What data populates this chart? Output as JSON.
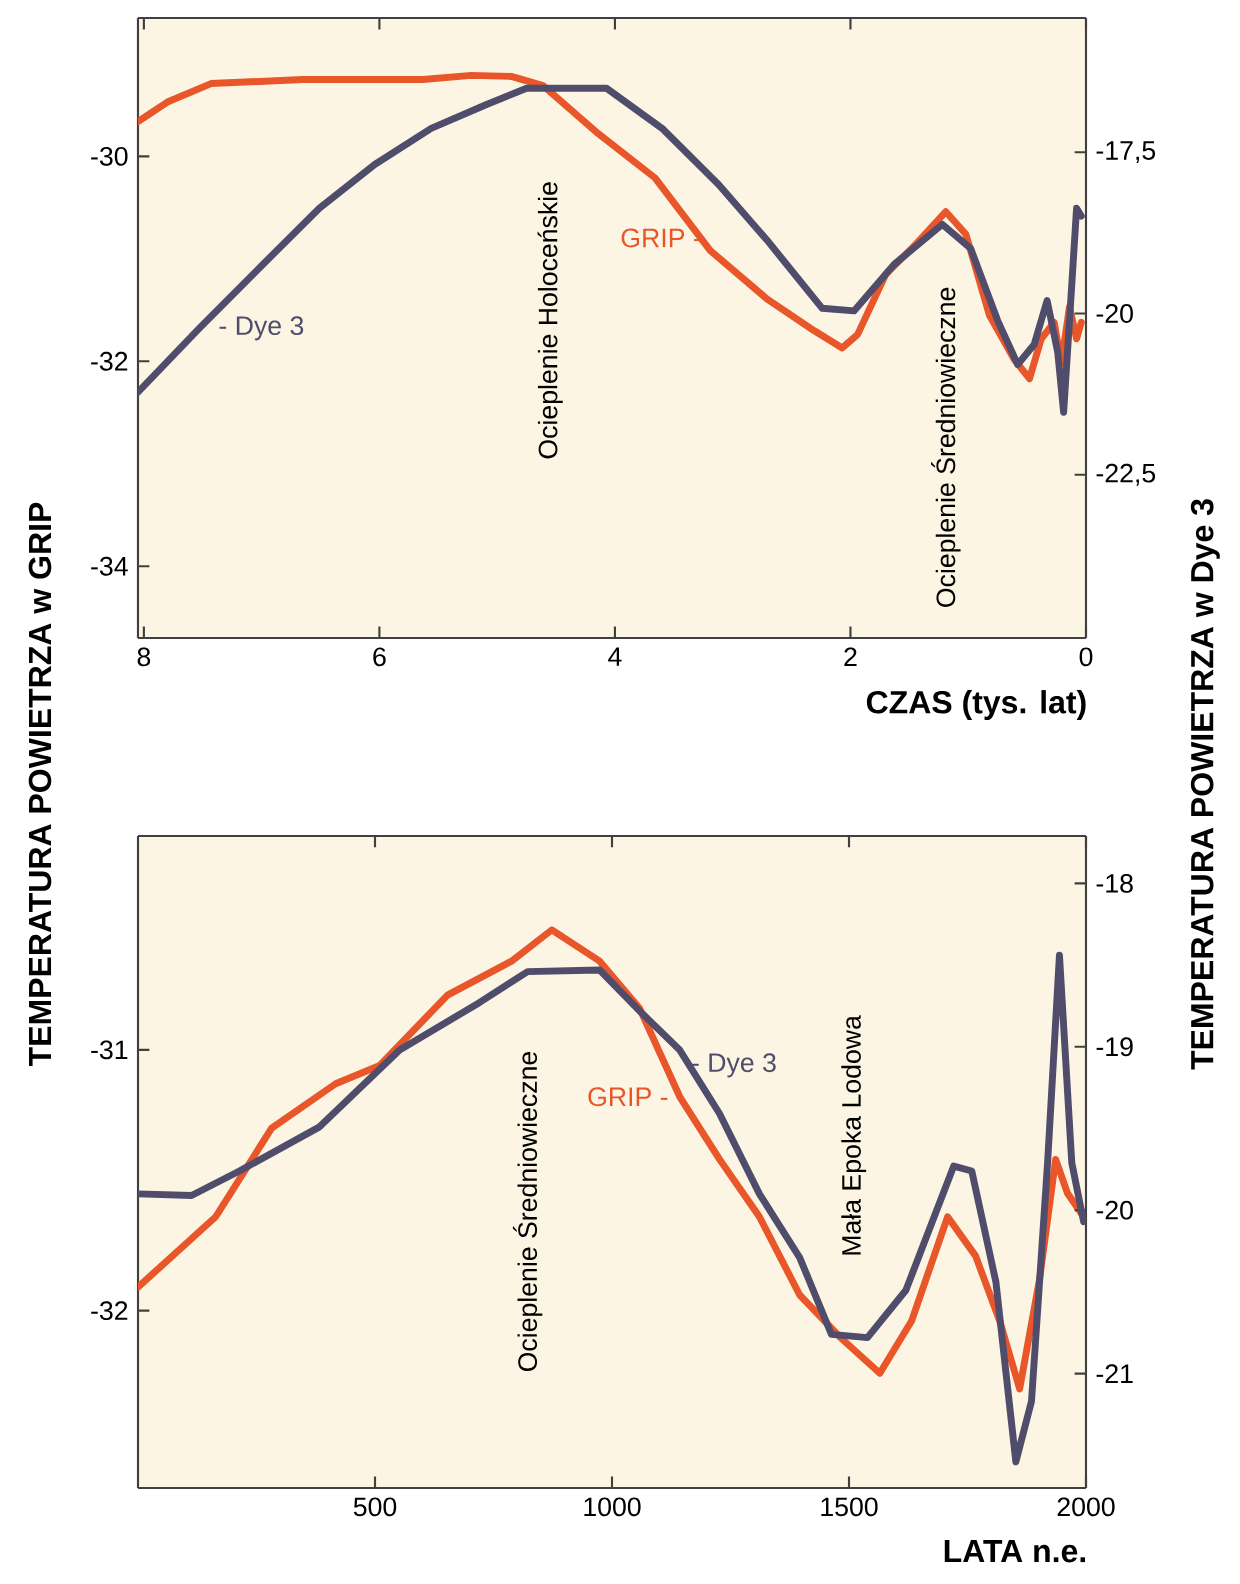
{
  "chart_data": [
    {
      "type": "line",
      "xlabel": "CZAS (tys. lat)",
      "ylabel": "TEMPERATURA POWIETRZA w GRIP",
      "y2label": "TEMPERATURA POWIETRZA w Dye 3",
      "xlim": [
        8.05,
        0
      ],
      "xticks": [
        8,
        6,
        4,
        2,
        0
      ],
      "ylim": [
        -34.7,
        -28.65
      ],
      "yticks": [
        -34,
        -32,
        -30
      ],
      "y2lim": [
        -25.03,
        -15.42
      ],
      "y2ticks": [
        {
          "value": -22.5,
          "label": "-22,5"
        },
        -20,
        {
          "value": -17.5,
          "label": "-17,5"
        }
      ],
      "marker": "none",
      "line_style": "solid",
      "annotations": [
        "Ocieplenie Holoceńskie",
        "Ocieplenie Średniowieczne"
      ],
      "series": [
        {
          "name": "GRIP -",
          "color": "#e8562a",
          "axis": "y",
          "x": [
            8.05,
            7.8,
            7.43,
            6.65,
            5.63,
            5.22,
            4.88,
            4.61,
            4.14,
            3.66,
            3.19,
            2.71,
            2.31,
            2.07,
            1.94,
            1.7,
            1.43,
            1.19,
            1.02,
            0.82,
            0.61,
            0.48,
            0.38,
            0.27,
            0.21,
            0.14,
            0.08,
            0.04
          ],
          "values": [
            -29.66,
            -29.47,
            -29.29,
            -29.25,
            -29.25,
            -29.21,
            -29.22,
            -29.31,
            -29.78,
            -30.21,
            -30.92,
            -31.39,
            -31.7,
            -31.87,
            -31.74,
            -31.15,
            -30.84,
            -30.54,
            -30.76,
            -31.55,
            -31.98,
            -32.17,
            -31.78,
            -31.62,
            -32.02,
            -31.47,
            -31.78,
            -31.62
          ]
        },
        {
          "name": "- Dye 3",
          "color": "#4f4d6b",
          "axis": "y2",
          "x": [
            8.05,
            7.53,
            6.99,
            6.51,
            6.04,
            5.56,
            5.09,
            4.75,
            4.07,
            3.6,
            3.12,
            2.71,
            2.24,
            1.97,
            1.63,
            1.22,
            0.98,
            0.75,
            0.58,
            0.44,
            0.33,
            0.24,
            0.19,
            0.14,
            0.08,
            0.04
          ],
          "values": [
            -21.22,
            -20.23,
            -19.24,
            -18.37,
            -17.69,
            -17.13,
            -16.76,
            -16.51,
            -16.51,
            -17.13,
            -18.0,
            -18.86,
            -19.92,
            -19.96,
            -19.24,
            -18.62,
            -18.99,
            -20.11,
            -20.79,
            -20.48,
            -19.8,
            -20.6,
            -21.53,
            -20.11,
            -18.37,
            -18.49
          ]
        }
      ]
    },
    {
      "type": "line",
      "xlabel": "LATA n.e.",
      "xlim": [
        0,
        2000
      ],
      "xticks": [
        500,
        1000,
        1500,
        2000
      ],
      "ylim": [
        -32.68,
        -30.18
      ],
      "yticks": [
        -32,
        -31
      ],
      "y2lim": [
        -21.7,
        -17.71
      ],
      "y2ticks": [
        -21,
        -20,
        -19,
        -18
      ],
      "marker": "none",
      "line_style": "solid",
      "annotations": [
        "Ocieplenie Średniowieczne",
        "Mała Epoka Lodowa"
      ],
      "series": [
        {
          "name": "GRIP -",
          "color": "#e8562a",
          "axis": "y",
          "x": [
            0,
            164,
            282,
            417,
            510,
            653,
            788,
            873,
            974,
            1058,
            1143,
            1227,
            1311,
            1396,
            1480,
            1565,
            1632,
            1708,
            1767,
            1818,
            1860,
            1902,
            1936,
            1961,
            1995
          ],
          "values": [
            -31.91,
            -31.64,
            -31.3,
            -31.13,
            -31.06,
            -30.79,
            -30.66,
            -30.54,
            -30.66,
            -30.84,
            -31.18,
            -31.42,
            -31.64,
            -31.94,
            -32.1,
            -32.24,
            -32.04,
            -31.64,
            -31.79,
            -32.04,
            -32.3,
            -31.88,
            -31.42,
            -31.55,
            -31.64
          ]
        },
        {
          "name": "- Dye 3",
          "color": "#4f4d6b",
          "axis": "y2",
          "x": [
            0,
            113,
            214,
            383,
            552,
            720,
            822,
            974,
            1058,
            1143,
            1227,
            1311,
            1396,
            1463,
            1539,
            1620,
            1721,
            1759,
            1810,
            1852,
            1885,
            1919,
            1944,
            1970,
            1995
          ],
          "values": [
            -19.9,
            -19.91,
            -19.76,
            -19.49,
            -19.02,
            -18.73,
            -18.54,
            -18.53,
            -18.78,
            -19.02,
            -19.41,
            -19.9,
            -20.29,
            -20.76,
            -20.78,
            -20.49,
            -19.73,
            -19.76,
            -20.44,
            -21.54,
            -21.17,
            -19.71,
            -18.44,
            -19.71,
            -20.07
          ]
        }
      ]
    }
  ]
}
